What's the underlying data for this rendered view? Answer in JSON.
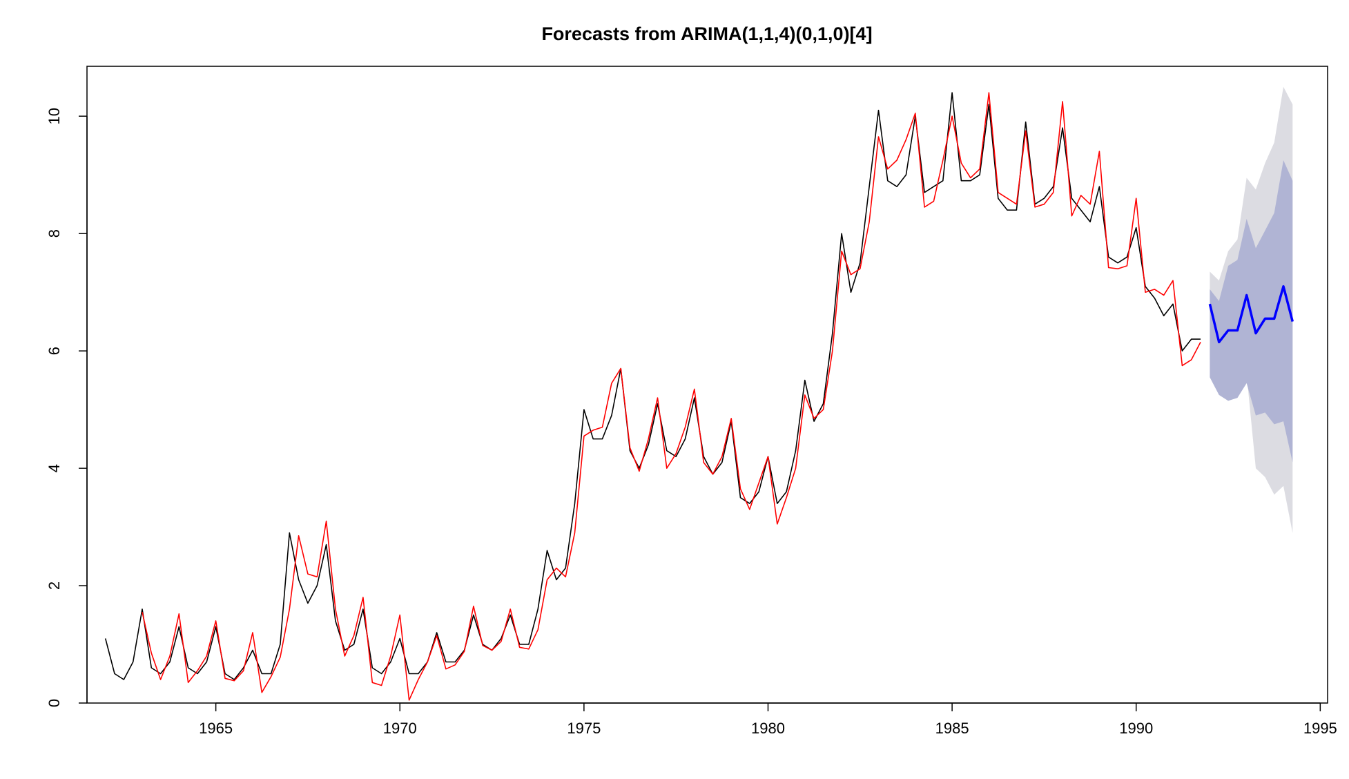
{
  "chart_data": {
    "type": "line",
    "title": "Forecasts from ARIMA(1,1,4)(0,1,0)[4]",
    "xlabel": "",
    "ylabel": "",
    "xlim": [
      1961.5,
      1995.2
    ],
    "ylim": [
      0,
      10.85
    ],
    "xticks": [
      1965,
      1970,
      1975,
      1980,
      1985,
      1990,
      1995
    ],
    "xtick_labels": [
      "1965",
      "1970",
      "1975",
      "1980",
      "1985",
      "1990",
      "1995"
    ],
    "yticks": [
      0,
      2,
      4,
      6,
      8,
      10
    ],
    "ytick_labels": [
      "0",
      "2",
      "4",
      "6",
      "8",
      "10"
    ],
    "grid": false,
    "legend": "none",
    "x_start": 1962.0,
    "x_step": 0.25,
    "series": [
      {
        "color": "#000000",
        "values": [
          1.1,
          0.5,
          0.4,
          0.7,
          1.6,
          0.6,
          0.5,
          0.7,
          1.3,
          0.6,
          0.5,
          0.7,
          1.3,
          0.5,
          0.4,
          0.6,
          0.9,
          0.5,
          0.5,
          1.0,
          2.9,
          2.1,
          1.7,
          2.0,
          2.7,
          1.4,
          0.9,
          1.0,
          1.6,
          0.6,
          0.5,
          0.7,
          1.1,
          0.5,
          0.5,
          0.7,
          1.2,
          0.7,
          0.7,
          0.9,
          1.5,
          1.0,
          0.9,
          1.1,
          1.5,
          1.0,
          1.0,
          1.6,
          2.6,
          2.1,
          2.3,
          3.4,
          5.0,
          4.5,
          4.5,
          4.9,
          5.7,
          4.3,
          4.0,
          4.4,
          5.1,
          4.3,
          4.2,
          4.5,
          5.2,
          4.2,
          3.9,
          4.1,
          4.8,
          3.5,
          3.4,
          3.6,
          4.2,
          3.4,
          3.6,
          4.3,
          5.5,
          4.8,
          5.1,
          6.3,
          8.0,
          7.0,
          7.5,
          8.8,
          10.1,
          8.9,
          8.8,
          9.0,
          10.0,
          8.7,
          8.8,
          8.9,
          10.4,
          8.9,
          8.9,
          9.0,
          10.2,
          8.6,
          8.4,
          8.4,
          9.9,
          8.5,
          8.6,
          8.8,
          9.8,
          8.6,
          8.4,
          8.2,
          8.8,
          7.6,
          7.5,
          7.6,
          8.1,
          7.1,
          6.9,
          6.6,
          6.8,
          6.0,
          6.2,
          6.2
        ]
      },
      {
        "color": "#ff0000",
        "values": [
          null,
          null,
          null,
          null,
          1.55,
          0.85,
          0.4,
          0.8,
          1.52,
          0.35,
          0.55,
          0.8,
          1.4,
          0.42,
          0.38,
          0.55,
          1.2,
          0.18,
          0.45,
          0.78,
          1.6,
          2.85,
          2.2,
          2.15,
          3.1,
          1.6,
          0.8,
          1.15,
          1.8,
          0.35,
          0.3,
          0.8,
          1.5,
          0.05,
          0.4,
          0.7,
          1.15,
          0.58,
          0.65,
          0.88,
          1.65,
          0.98,
          0.9,
          1.05,
          1.6,
          0.95,
          0.92,
          1.25,
          2.1,
          2.3,
          2.15,
          2.9,
          4.55,
          4.65,
          4.7,
          5.45,
          5.7,
          4.35,
          3.95,
          4.5,
          5.2,
          4.0,
          4.25,
          4.7,
          5.35,
          4.1,
          3.9,
          4.2,
          4.85,
          3.65,
          3.3,
          3.75,
          4.2,
          3.05,
          3.5,
          4.0,
          5.25,
          4.85,
          5.0,
          6.0,
          7.7,
          7.3,
          7.4,
          8.2,
          9.65,
          9.1,
          9.25,
          9.6,
          10.05,
          8.45,
          8.55,
          9.25,
          10.0,
          9.2,
          8.95,
          9.1,
          10.4,
          8.7,
          8.6,
          8.5,
          9.75,
          8.45,
          8.5,
          8.7,
          10.25,
          8.3,
          8.65,
          8.5,
          9.4,
          7.42,
          7.4,
          7.45,
          8.6,
          7.0,
          7.05,
          6.95,
          7.2,
          5.75,
          5.85,
          6.15
        ]
      }
    ],
    "forecast": {
      "color": "#0000ff",
      "x_start": 1992.0,
      "x_step": 0.25,
      "mean": [
        6.8,
        6.15,
        6.35,
        6.35,
        6.95,
        6.3,
        6.55,
        6.55,
        7.1,
        6.5
      ],
      "lower80": [
        5.55,
        5.25,
        5.15,
        5.2,
        5.45,
        4.9,
        4.95,
        4.75,
        4.8,
        4.1
      ],
      "upper80": [
        7.05,
        6.85,
        7.45,
        7.55,
        8.25,
        7.75,
        8.05,
        8.35,
        9.25,
        8.9
      ],
      "lower95": [
        5.85,
        5.55,
        5.55,
        5.35,
        5.6,
        4.0,
        3.85,
        3.55,
        3.7,
        2.9
      ],
      "upper95": [
        7.35,
        7.2,
        7.7,
        7.9,
        8.95,
        8.75,
        9.2,
        9.55,
        10.5,
        10.2
      ],
      "band80_color": "#b0b4d4",
      "band95_color": "#dcdce2"
    }
  }
}
